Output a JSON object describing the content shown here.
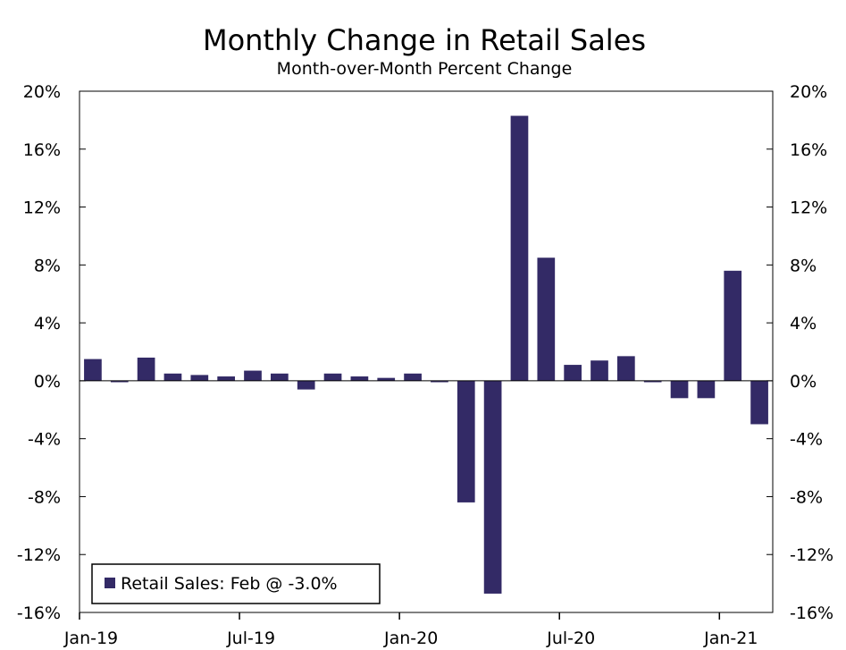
{
  "chart_data": {
    "type": "bar",
    "title": "Monthly Change in Retail Sales",
    "subtitle": "Month-over-Month Percent Change",
    "xlabel": "",
    "ylabel": "",
    "ylim": [
      -16,
      20
    ],
    "ytick_values": [
      -16,
      -12,
      -8,
      -4,
      0,
      4,
      8,
      12,
      16,
      20
    ],
    "ytick_labels": [
      "-16%",
      "-12%",
      "-8%",
      "-4%",
      "0%",
      "4%",
      "8%",
      "12%",
      "16%",
      "20%"
    ],
    "categories": [
      "Jan-19",
      "Feb-19",
      "Mar-19",
      "Apr-19",
      "May-19",
      "Jun-19",
      "Jul-19",
      "Aug-19",
      "Sep-19",
      "Oct-19",
      "Nov-19",
      "Dec-19",
      "Jan-20",
      "Feb-20",
      "Mar-20",
      "Apr-20",
      "May-20",
      "Jun-20",
      "Jul-20",
      "Aug-20",
      "Sep-20",
      "Oct-20",
      "Nov-20",
      "Dec-20",
      "Jan-21",
      "Feb-21"
    ],
    "xtick_labels": [
      {
        "index": 0,
        "label": "Jan-19"
      },
      {
        "index": 6,
        "label": "Jul-19"
      },
      {
        "index": 12,
        "label": "Jan-20"
      },
      {
        "index": 18,
        "label": "Jul-20"
      },
      {
        "index": 24,
        "label": "Jan-21"
      }
    ],
    "series": [
      {
        "name": "Retail Sales: Feb @ -3.0%",
        "color": "#332a66",
        "values": [
          1.5,
          -0.1,
          1.6,
          0.5,
          0.4,
          0.3,
          0.7,
          0.5,
          -0.6,
          0.5,
          0.3,
          0.2,
          0.5,
          -0.1,
          -8.4,
          -14.7,
          18.3,
          8.5,
          1.1,
          1.4,
          1.7,
          -0.1,
          -1.2,
          -1.2,
          7.6,
          -3.0
        ]
      }
    ],
    "legend": {
      "label": "Retail Sales: Feb @ -3.0%",
      "placement": "bottom-left"
    },
    "grid": false,
    "dual_y_axis": true
  }
}
